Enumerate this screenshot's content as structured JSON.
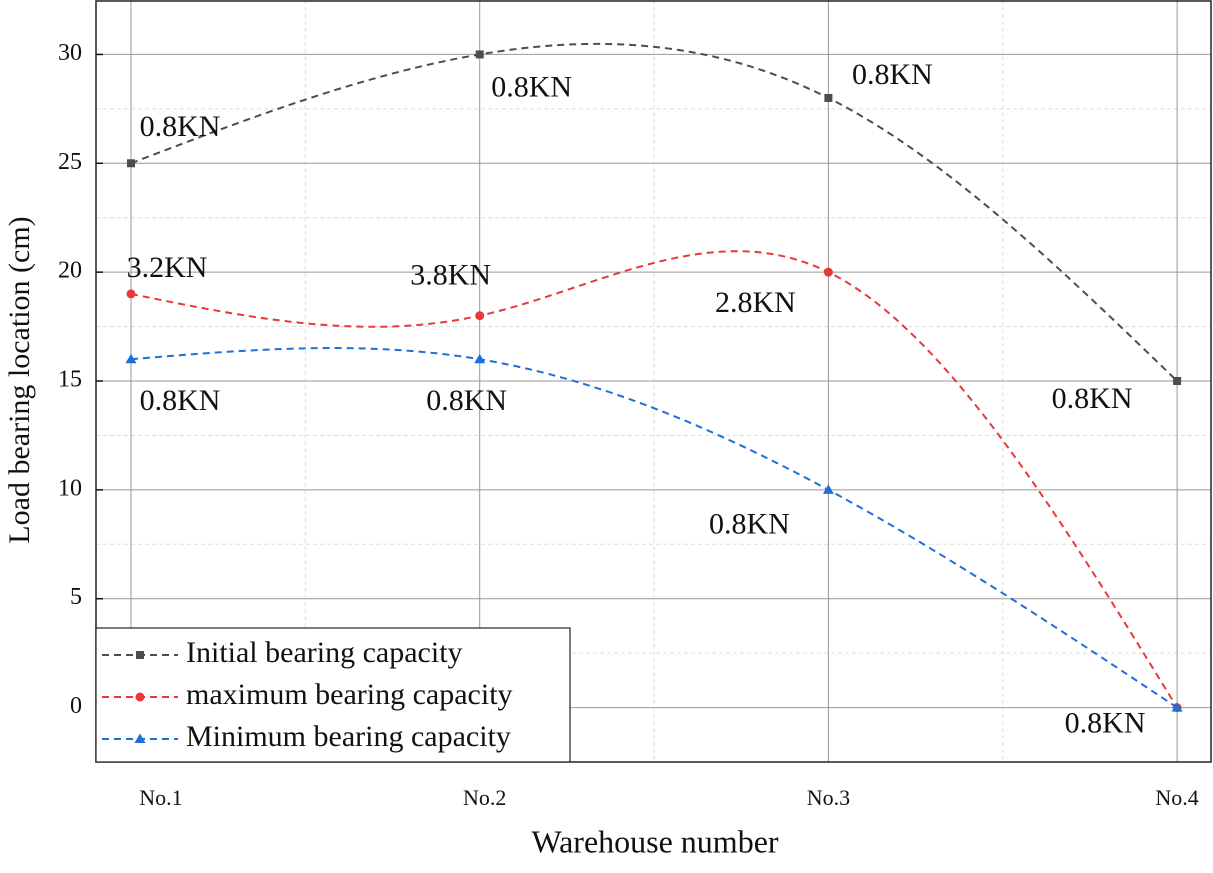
{
  "chart_data": {
    "type": "line",
    "x_label": "Warehouse number",
    "y_label": "Load bearing location (cm)",
    "categories": [
      "No.1",
      "No.2",
      "No.3",
      "No.4"
    ],
    "series": [
      {
        "name": "Initial bearing capacity",
        "color": "#4d4d4d",
        "marker": "square",
        "values": [
          25,
          30,
          28,
          15
        ],
        "labels": [
          "0.8KN",
          "0.8KN",
          "0.8KN",
          "0.8KN"
        ]
      },
      {
        "name": "maximum bearing capacity",
        "color": "#e8393a",
        "marker": "circle",
        "values": [
          19,
          18,
          20,
          0
        ],
        "labels": [
          "3.2KN",
          "3.8KN",
          "2.8KN",
          null
        ]
      },
      {
        "name": "Minimum bearing capacity",
        "color": "#1f6fd8",
        "marker": "triangle",
        "values": [
          16,
          16,
          10,
          0
        ],
        "labels": [
          "0.8KN",
          "0.8KN",
          "0.8KN",
          "0.8KN"
        ]
      }
    ],
    "ylim": [
      -2.5,
      32.5
    ],
    "yticks": [
      0,
      5,
      10,
      15,
      20,
      25,
      30
    ],
    "yminor": [
      2.5,
      7.5,
      12.5,
      17.5,
      22.5,
      27.5
    ],
    "grid": true,
    "smooth": true,
    "dashed": true,
    "legend": "lower left"
  }
}
